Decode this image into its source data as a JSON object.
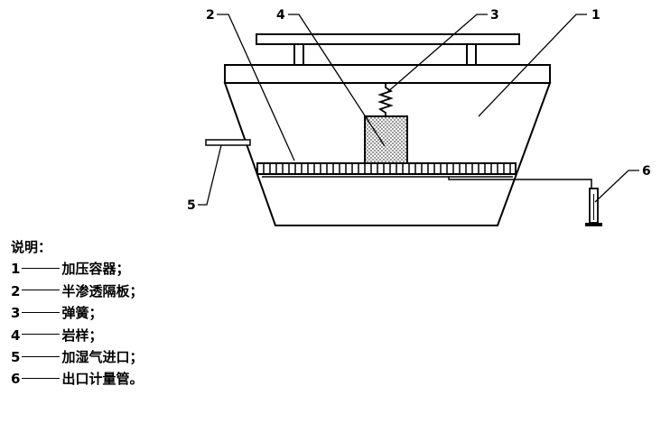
{
  "diagram": {
    "callouts": [
      {
        "number": "1"
      },
      {
        "number": "2"
      },
      {
        "number": "3"
      },
      {
        "number": "4"
      },
      {
        "number": "5"
      },
      {
        "number": "6"
      }
    ]
  },
  "legend": {
    "title": "说明：",
    "items": [
      {
        "number": "1",
        "text": "加压容器；"
      },
      {
        "number": "2",
        "text": "半渗透隔板；"
      },
      {
        "number": "3",
        "text": "弹簧；"
      },
      {
        "number": "4",
        "text": "岩样；"
      },
      {
        "number": "5",
        "text": "加湿气进口；"
      },
      {
        "number": "6",
        "text": "出口计量管。"
      }
    ]
  }
}
